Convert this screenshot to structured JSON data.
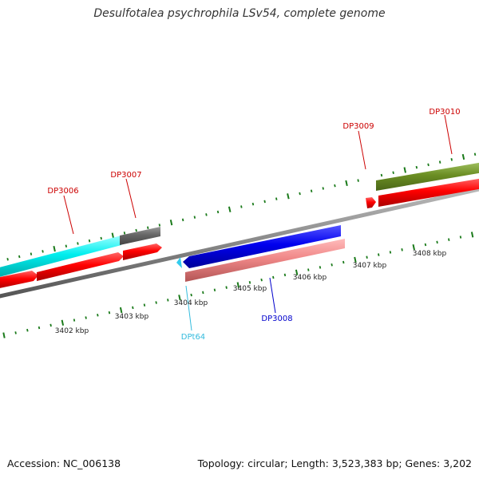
{
  "title": "Desulfotalea psychrophila LSv54, complete genome",
  "footer": {
    "accession": "Accession: NC_006138",
    "summary": "Topology: circular; Length: 3,523,383 bp; Genes: 3,202"
  },
  "colors": {
    "backbone": "#8a8a8a",
    "tick": "#1a7a1a",
    "cds_forward": "#ff0000",
    "gene_cyan": "#00e5e5",
    "gene_gray": "#666666",
    "gene_blue": "#0000dd",
    "gene_pink": "#f08888",
    "gene_olive": "#6b8e23",
    "label_red": "#cc0000",
    "label_blue": "#0000cc",
    "label_cyan": "#33bbdd"
  },
  "scale": {
    "unit": "kbp",
    "ticks": [
      {
        "label": "3402 kbp"
      },
      {
        "label": "3403 kbp"
      },
      {
        "label": "3404 kbp"
      },
      {
        "label": "3405 kbp"
      },
      {
        "label": "3406 kbp"
      },
      {
        "label": "3407 kbp"
      },
      {
        "label": "3408 kbp"
      }
    ]
  },
  "genes": [
    {
      "name": "DP3006",
      "color": "#cc0000"
    },
    {
      "name": "DP3007",
      "color": "#cc0000"
    },
    {
      "name": "DP3008",
      "color": "#0000cc"
    },
    {
      "name": "DPt64",
      "color": "#33bbdd"
    },
    {
      "name": "DP3009",
      "color": "#cc0000"
    },
    {
      "name": "DP3010",
      "color": "#cc0000"
    }
  ]
}
